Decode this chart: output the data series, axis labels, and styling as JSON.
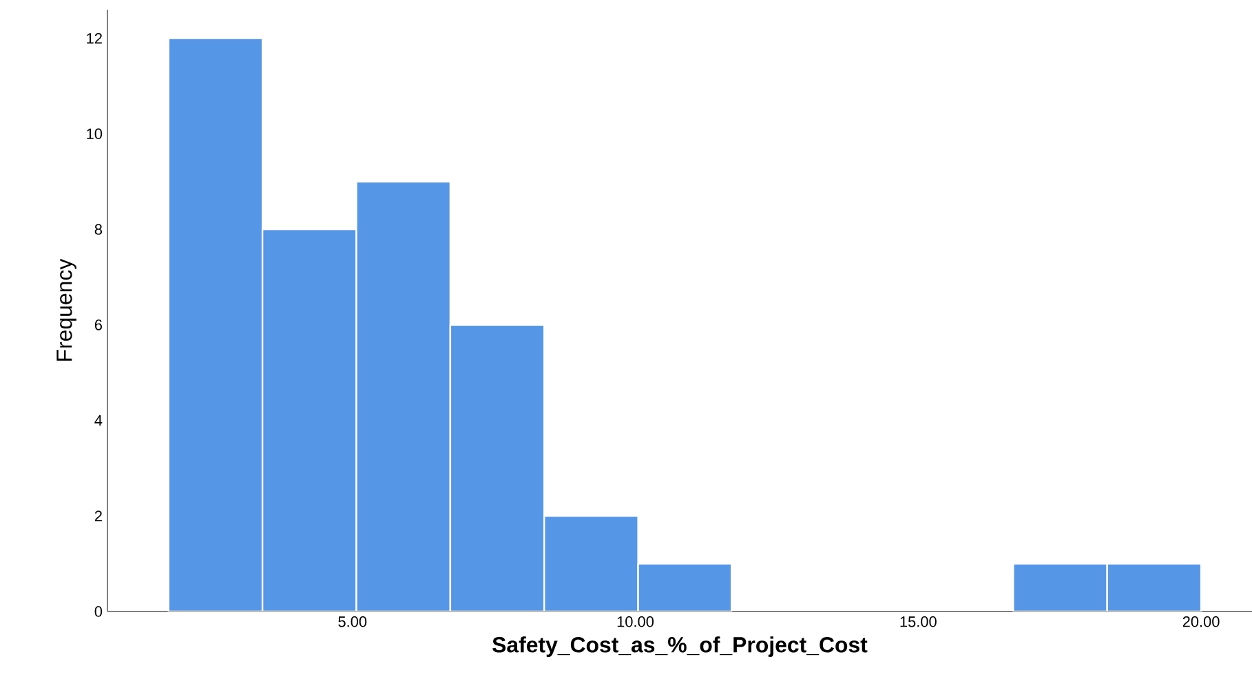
{
  "chart_data": {
    "type": "histogram",
    "xlabel": "Safety_Cost_as_%_of_Project_Cost",
    "ylabel": "Frequency",
    "bins": [
      1.75,
      3.41,
      5.07,
      6.73,
      8.39,
      10.05,
      11.7,
      16.68,
      18.34,
      20.0
    ],
    "values": [
      12,
      8,
      9,
      6,
      2,
      1,
      0,
      1,
      1
    ],
    "color": "#5596e6",
    "xlim": [
      0.67,
      20.9
    ],
    "ylim": [
      0,
      12.6
    ],
    "xticks": [
      {
        "value": 5,
        "label": "5.00"
      },
      {
        "value": 10,
        "label": "10.00"
      },
      {
        "value": 15,
        "label": "15.00"
      },
      {
        "value": 20,
        "label": "20.00"
      }
    ],
    "yticks": [
      0,
      2,
      4,
      6,
      8,
      10,
      12
    ],
    "grid": false
  }
}
